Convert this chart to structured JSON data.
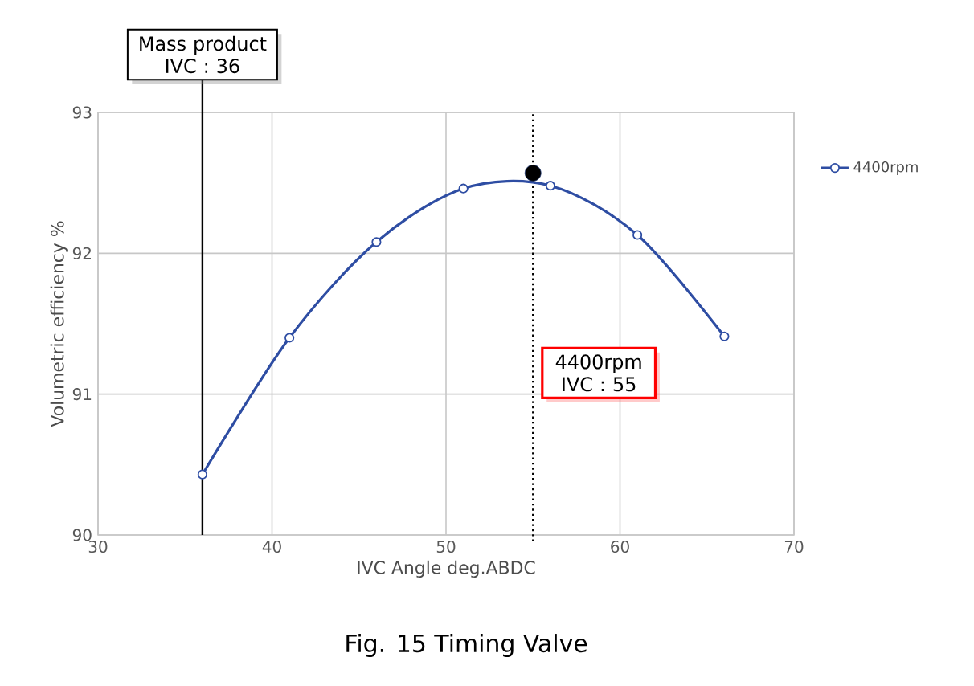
{
  "chart_data": {
    "type": "line",
    "xlabel": "IVC Angle deg.ABDC",
    "ylabel": "Volumetric efficiency %",
    "xlim": [
      30,
      70
    ],
    "xticks": [
      30,
      40,
      50,
      60,
      70
    ],
    "ylim": [
      90,
      93
    ],
    "yticks": [
      90,
      91,
      92,
      93
    ],
    "grid": true,
    "legend": "right",
    "marker": "circle",
    "line_style": "solid",
    "series": [
      {
        "name": "4400rpm",
        "color": "#2e4da3",
        "x": [
          36,
          41,
          46,
          51,
          56,
          61,
          66
        ],
        "values": [
          90.43,
          91.4,
          92.08,
          92.46,
          92.48,
          92.13,
          91.41
        ]
      },
      {
        "type": "scatter",
        "color": "#1b326e",
        "x": [
          55
        ],
        "values": [
          92.57
        ]
      }
    ],
    "ref_lines": [
      {
        "axis": "x",
        "value": 36,
        "label": "Mass product IVC : 36",
        "color": "#000000",
        "line_style": "solid"
      },
      {
        "axis": "x",
        "value": 55,
        "label": "4400rpm IVC : 55",
        "color": "#000000",
        "line_style": "dotted"
      }
    ],
    "annotations": [
      "Fig. 15 Timing Valve"
    ]
  }
}
